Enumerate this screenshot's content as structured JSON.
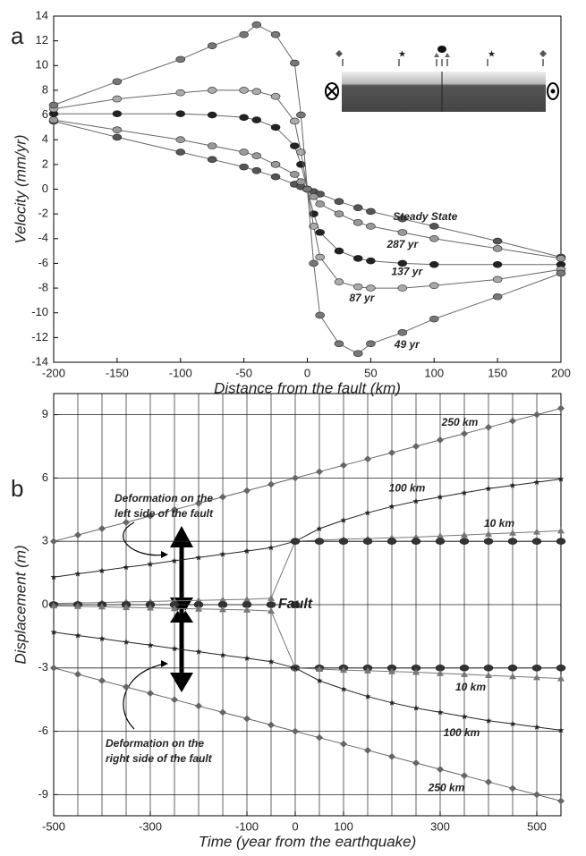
{
  "chart_data": [
    {
      "type": "line",
      "panel": "a",
      "x_label": "Distance from the fault (km)",
      "y_label": "Velocity (mm/yr)",
      "x": [
        -200,
        -150,
        -100,
        -75,
        -50,
        -40,
        -25,
        -10,
        -5,
        0,
        5,
        10,
        25,
        40,
        50,
        75,
        100,
        150,
        200
      ],
      "xlim": [
        -200,
        200
      ],
      "xticks": [
        -200,
        -150,
        -100,
        -50,
        0,
        50,
        100,
        150,
        200
      ],
      "ylim": [
        -14,
        14
      ],
      "yticks": [
        -14,
        -12,
        -10,
        -8,
        -6,
        -4,
        -2,
        0,
        2,
        4,
        6,
        8,
        10,
        12,
        14
      ],
      "grid": false,
      "series": [
        {
          "name": "Steady State",
          "color": "#555555",
          "marker": "circle",
          "values": [
            5.5,
            4.2,
            3,
            2.4,
            1.8,
            1.5,
            1,
            0.4,
            0.2,
            0,
            -0.2,
            -0.4,
            -1,
            -1.5,
            -1.8,
            -2.4,
            -3,
            -4.2,
            -5.5
          ]
        },
        {
          "name": "287 yr",
          "color": "#999999",
          "marker": "circle",
          "values": [
            5.6,
            4.8,
            4,
            3.5,
            3,
            2.7,
            2,
            1.2,
            0.6,
            0,
            -0.6,
            -1.2,
            -2,
            -2.7,
            -3,
            -3.5,
            -4,
            -4.8,
            -5.6
          ]
        },
        {
          "name": "137 yr",
          "color": "#222222",
          "marker": "circle",
          "values": [
            6.1,
            6.1,
            6.1,
            6,
            5.8,
            5.6,
            5,
            3.5,
            2,
            0,
            -2,
            -3.5,
            -5,
            -5.6,
            -5.8,
            -6,
            -6.1,
            -6.1,
            -6.1
          ]
        },
        {
          "name": "87 yr",
          "color": "#aaaaaa",
          "marker": "circle",
          "values": [
            6.5,
            7.3,
            7.8,
            8,
            8,
            7.9,
            7.5,
            5.5,
            3,
            0,
            -3,
            -5.5,
            -7.5,
            -7.9,
            -8,
            -8,
            -7.8,
            -7.3,
            -6.5
          ]
        },
        {
          "name": "49 yr",
          "color": "#777777",
          "marker": "circle",
          "values": [
            6.8,
            8.7,
            10.5,
            11.6,
            12.5,
            13.3,
            12.5,
            10.2,
            6,
            0,
            -6,
            -10.2,
            -12.5,
            -13.3,
            -12.5,
            -11.6,
            -10.5,
            -8.7,
            -6.8
          ]
        }
      ]
    },
    {
      "type": "line",
      "panel": "b",
      "x_label": "Time (year from the earthquake)",
      "y_label": "Displacement (m)",
      "x": [
        -500,
        -450,
        -400,
        -350,
        -300,
        -250,
        -200,
        -150,
        -100,
        -50,
        0,
        50,
        100,
        150,
        200,
        250,
        300,
        350,
        400,
        450,
        500,
        550
      ],
      "xlim": [
        -500,
        550
      ],
      "xticks": [
        -500,
        -300,
        -100,
        0,
        100,
        300,
        500
      ],
      "xgrid": [
        -500,
        -450,
        -400,
        -350,
        -300,
        -250,
        -200,
        -150,
        -100,
        -50,
        0,
        50,
        100,
        150,
        200,
        250,
        300,
        350,
        400,
        450,
        500,
        550
      ],
      "ylim": [
        -10,
        10
      ],
      "yticks": [
        -9,
        -6,
        -3,
        0,
        3,
        6,
        9
      ],
      "grid": true,
      "annotations": [
        [
          "Deformation on the",
          "left side of the fault"
        ],
        [
          "Deformation on the",
          "right side of the fault"
        ]
      ],
      "series": [
        {
          "name": "250 km",
          "color": "#666666",
          "marker": "diamond",
          "values": [
            3,
            3.3,
            3.6,
            3.9,
            4.2,
            4.5,
            4.8,
            5.1,
            5.4,
            5.7,
            6,
            6.3,
            6.6,
            6.9,
            7.2,
            7.5,
            7.8,
            8.1,
            8.4,
            8.7,
            9,
            9.3
          ]
        },
        {
          "name": "100 km",
          "color": "#222222",
          "marker": "star",
          "values": [
            1.3,
            1.46,
            1.61,
            1.77,
            1.92,
            2.08,
            2.23,
            2.39,
            2.54,
            2.7,
            3,
            3.6,
            4,
            4.35,
            4.65,
            4.9,
            5.1,
            5.3,
            5.5,
            5.65,
            5.8,
            5.95
          ]
        },
        {
          "name": "10 km",
          "color": "#777777",
          "marker": "triangle",
          "values": [
            0.05,
            0.08,
            0.1,
            0.13,
            0.15,
            0.18,
            0.2,
            0.23,
            0.25,
            0.3,
            3,
            3.05,
            3.1,
            3.13,
            3.17,
            3.2,
            3.25,
            3.3,
            3.35,
            3.4,
            3.45,
            3.5
          ]
        },
        {
          "name": "Fault",
          "color": "#333333",
          "marker": "circle",
          "values": [
            0,
            0,
            0,
            0,
            0,
            0,
            0,
            0,
            0,
            0,
            0,
            null,
            null,
            null,
            null,
            null,
            null,
            null,
            null,
            null,
            null,
            null
          ]
        },
        {
          "color": "#333333",
          "marker": "circle",
          "values": [
            null,
            null,
            null,
            null,
            null,
            null,
            null,
            null,
            null,
            null,
            3,
            3,
            3,
            3,
            3,
            3,
            3,
            3,
            3,
            3,
            3,
            3
          ]
        },
        {
          "color": "#333333",
          "marker": "circle",
          "values": [
            null,
            null,
            null,
            null,
            null,
            null,
            null,
            null,
            null,
            null,
            -3,
            -3,
            -3,
            -3,
            -3,
            -3,
            -3,
            -3,
            -3,
            -3,
            -3,
            -3
          ]
        },
        {
          "name": "10 km",
          "color": "#777777",
          "marker": "triangle",
          "values": [
            -0.05,
            -0.08,
            -0.1,
            -0.13,
            -0.15,
            -0.18,
            -0.2,
            -0.23,
            -0.25,
            -0.3,
            -3,
            -3.05,
            -3.1,
            -3.13,
            -3.17,
            -3.2,
            -3.25,
            -3.3,
            -3.35,
            -3.4,
            -3.45,
            -3.5
          ]
        },
        {
          "name": "100 km",
          "color": "#222222",
          "marker": "star",
          "values": [
            -1.3,
            -1.46,
            -1.61,
            -1.77,
            -1.92,
            -2.08,
            -2.23,
            -2.39,
            -2.54,
            -2.7,
            -3,
            -3.6,
            -4,
            -4.35,
            -4.65,
            -4.9,
            -5.1,
            -5.3,
            -5.5,
            -5.65,
            -5.8,
            -5.95
          ]
        },
        {
          "name": "250 km",
          "color": "#666666",
          "marker": "diamond",
          "values": [
            -3,
            -3.3,
            -3.6,
            -3.9,
            -4.2,
            -4.5,
            -4.8,
            -5.1,
            -5.4,
            -5.7,
            -6,
            -6.3,
            -6.6,
            -6.9,
            -7.2,
            -7.5,
            -7.8,
            -8.1,
            -8.4,
            -8.7,
            -9,
            -9.3
          ]
        }
      ]
    }
  ]
}
